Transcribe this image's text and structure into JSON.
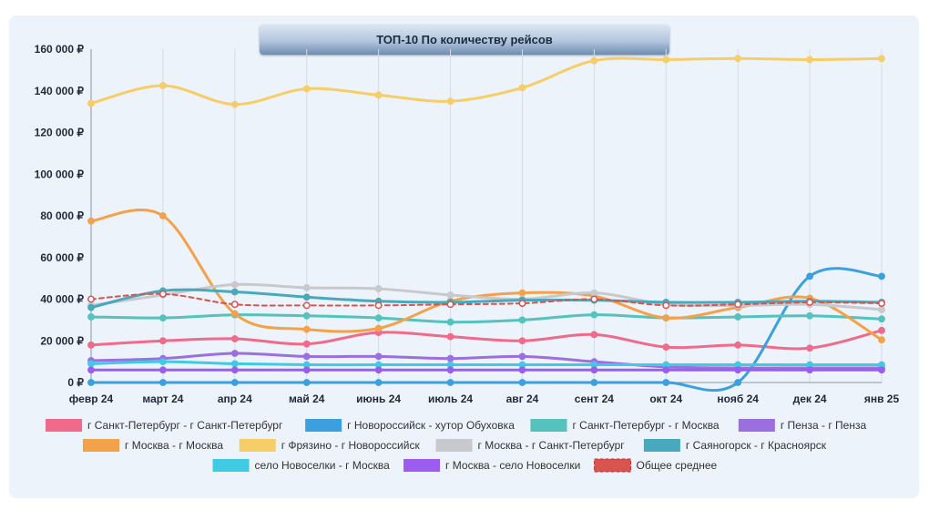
{
  "chart_data": {
    "type": "line",
    "title": "ТОП-10 По количеству рейсов",
    "categories": [
      "февр 24",
      "март 24",
      "апр 24",
      "май 24",
      "июнь 24",
      "июль 24",
      "авг 24",
      "сент 24",
      "окт 24",
      "нояб 24",
      "дек 24",
      "янв 25"
    ],
    "y_ticks": [
      "0 ₽",
      "20 000 ₽",
      "40 000 ₽",
      "60 000 ₽",
      "80 000 ₽",
      "100 000 ₽",
      "120 000 ₽",
      "140 000 ₽",
      "160 000 ₽"
    ],
    "ylim": [
      0,
      160000
    ],
    "grid": "vertical",
    "legend_position": "bottom",
    "series": [
      {
        "name": "г Санкт-Петербург - г Санкт-Петербург",
        "color": "#f06a8a",
        "values": [
          18000,
          20000,
          21000,
          18500,
          24000,
          22000,
          20000,
          23000,
          17000,
          18000,
          16500,
          25000
        ]
      },
      {
        "name": "г Новороссийск - хутор Обуховка",
        "color": "#3c9fde",
        "values": [
          0,
          0,
          0,
          0,
          0,
          0,
          0,
          0,
          0,
          0,
          51000,
          51000
        ]
      },
      {
        "name": "г Санкт-Петербург - г Москва",
        "color": "#55c2bd",
        "values": [
          31500,
          31000,
          32500,
          32000,
          31000,
          29000,
          30000,
          32500,
          31000,
          31500,
          32000,
          30500
        ]
      },
      {
        "name": "г Пенза - г Пенза",
        "color": "#9b6fdf",
        "values": [
          10500,
          11500,
          14000,
          12500,
          12500,
          11500,
          12500,
          10000,
          7500,
          7000,
          7000,
          7000
        ]
      },
      {
        "name": "г Москва - г Москва",
        "color": "#f4a24a",
        "values": [
          77500,
          80000,
          33000,
          25500,
          26000,
          39000,
          43000,
          41500,
          31000,
          36000,
          40500,
          20500
        ]
      },
      {
        "name": "г Фрязино - г Новороссийск",
        "color": "#f7cd68",
        "values": [
          134000,
          142500,
          133500,
          141000,
          138000,
          135000,
          141500,
          154500,
          155000,
          155500,
          155000,
          155500
        ]
      },
      {
        "name": "г Москва - г Санкт-Петербург",
        "color": "#c8c9cc",
        "values": [
          37000,
          42000,
          47000,
          45500,
          45000,
          42000,
          40000,
          43000,
          37500,
          37000,
          37500,
          35000
        ]
      },
      {
        "name": "г Саяногорск - г Красноярск",
        "color": "#49a9bc",
        "values": [
          36000,
          44000,
          43500,
          41000,
          39000,
          38500,
          39500,
          39500,
          38500,
          38500,
          39000,
          38500
        ]
      },
      {
        "name": "село Новоселки - г Москва",
        "color": "#3fcbe3",
        "values": [
          9000,
          10000,
          9000,
          8500,
          8500,
          8500,
          8500,
          8500,
          8500,
          8500,
          8500,
          8500
        ]
      },
      {
        "name": "г Москва - село Новоселки",
        "color": "#9c5cf0",
        "values": [
          6000,
          6000,
          6000,
          6000,
          6000,
          6000,
          6000,
          6000,
          6000,
          6000,
          6000,
          6000
        ]
      },
      {
        "name": "Общее среднее",
        "color": "#d9534f",
        "dashed": true,
        "values": [
          40000,
          42500,
          37500,
          37000,
          37000,
          37500,
          38000,
          40000,
          37000,
          37500,
          38500,
          38000
        ]
      }
    ],
    "legend_rows": [
      [
        0,
        1,
        2,
        3
      ],
      [
        4,
        5,
        6,
        7
      ],
      [
        8,
        9,
        10
      ]
    ]
  }
}
